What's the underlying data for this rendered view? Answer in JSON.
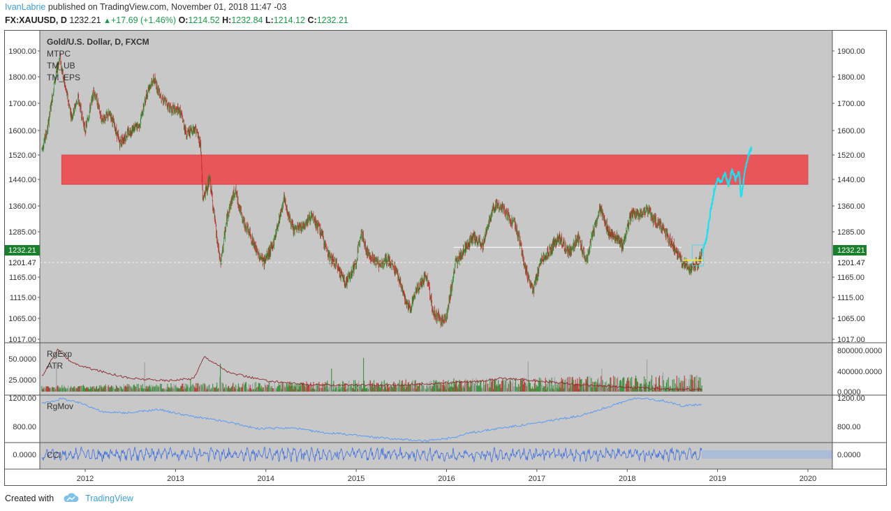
{
  "header": {
    "author": "IvanLabrie",
    "published_text": "published on TradingView.com, November 01, 2018 11:47 -03",
    "symbol": "FX:XAUUSD, D",
    "last": "1232.21",
    "change": "+17.69 (+1.46%)",
    "o_label": "O:",
    "o_value": "1214.52",
    "h_label": "H:",
    "h_value": "1232.84",
    "l_label": "L:",
    "l_value": "1214.12",
    "c_label": "C:",
    "c_value": "1232.21"
  },
  "legend": {
    "title": "Gold/U.S. Dollar, D, FXCM",
    "studies": [
      "MTPC",
      "TM_UB",
      "TM_EPS"
    ]
  },
  "price_badges": {
    "last": "1232.21",
    "ref": "1201.47"
  },
  "chart_data": {
    "type": "candlestick",
    "title": "Gold/U.S. Dollar, D, FXCM",
    "main_axis": {
      "ticks": [
        "1900.00",
        "1800.00",
        "1700.00",
        "1600.00",
        "1520.00",
        "1440.00",
        "1360.00",
        "1285.00",
        "1165.00",
        "1115.00",
        "1065.00",
        "1017.00"
      ],
      "ylim": [
        1017,
        1945
      ]
    },
    "x_axis": {
      "ticks": [
        "2012",
        "2013",
        "2014",
        "2015",
        "2016",
        "2017",
        "2018",
        "2019",
        "2020"
      ],
      "xlim": [
        2011.5,
        2020.3
      ]
    },
    "price_path": [
      [
        2011.52,
        1540
      ],
      [
        2011.58,
        1600
      ],
      [
        2011.66,
        1780
      ],
      [
        2011.72,
        1880
      ],
      [
        2011.76,
        1790
      ],
      [
        2011.85,
        1650
      ],
      [
        2011.92,
        1720
      ],
      [
        2012.0,
        1600
      ],
      [
        2012.1,
        1750
      ],
      [
        2012.18,
        1640
      ],
      [
        2012.28,
        1660
      ],
      [
        2012.38,
        1560
      ],
      [
        2012.5,
        1600
      ],
      [
        2012.6,
        1620
      ],
      [
        2012.7,
        1760
      ],
      [
        2012.76,
        1790
      ],
      [
        2012.85,
        1720
      ],
      [
        2012.95,
        1680
      ],
      [
        2013.05,
        1670
      ],
      [
        2013.12,
        1590
      ],
      [
        2013.22,
        1610
      ],
      [
        2013.28,
        1550
      ],
      [
        2013.3,
        1380
      ],
      [
        2013.38,
        1440
      ],
      [
        2013.46,
        1260
      ],
      [
        2013.5,
        1200
      ],
      [
        2013.58,
        1340
      ],
      [
        2013.66,
        1410
      ],
      [
        2013.74,
        1320
      ],
      [
        2013.82,
        1280
      ],
      [
        2013.9,
        1230
      ],
      [
        2013.98,
        1205
      ],
      [
        2014.08,
        1250
      ],
      [
        2014.2,
        1380
      ],
      [
        2014.3,
        1290
      ],
      [
        2014.4,
        1300
      ],
      [
        2014.5,
        1330
      ],
      [
        2014.6,
        1290
      ],
      [
        2014.7,
        1220
      ],
      [
        2014.8,
        1190
      ],
      [
        2014.88,
        1150
      ],
      [
        2015.0,
        1200
      ],
      [
        2015.05,
        1290
      ],
      [
        2015.12,
        1230
      ],
      [
        2015.25,
        1200
      ],
      [
        2015.35,
        1210
      ],
      [
        2015.45,
        1180
      ],
      [
        2015.55,
        1100
      ],
      [
        2015.6,
        1090
      ],
      [
        2015.68,
        1140
      ],
      [
        2015.78,
        1170
      ],
      [
        2015.85,
        1080
      ],
      [
        2015.95,
        1060
      ],
      [
        2016.0,
        1070
      ],
      [
        2016.1,
        1200
      ],
      [
        2016.2,
        1240
      ],
      [
        2016.3,
        1270
      ],
      [
        2016.4,
        1250
      ],
      [
        2016.5,
        1340
      ],
      [
        2016.55,
        1370
      ],
      [
        2016.65,
        1340
      ],
      [
        2016.75,
        1310
      ],
      [
        2016.8,
        1270
      ],
      [
        2016.88,
        1180
      ],
      [
        2016.96,
        1130
      ],
      [
        2017.05,
        1210
      ],
      [
        2017.15,
        1240
      ],
      [
        2017.25,
        1270
      ],
      [
        2017.35,
        1230
      ],
      [
        2017.45,
        1270
      ],
      [
        2017.55,
        1210
      ],
      [
        2017.62,
        1280
      ],
      [
        2017.7,
        1350
      ],
      [
        2017.8,
        1280
      ],
      [
        2017.88,
        1270
      ],
      [
        2017.95,
        1250
      ],
      [
        2018.05,
        1340
      ],
      [
        2018.12,
        1330
      ],
      [
        2018.22,
        1350
      ],
      [
        2018.3,
        1320
      ],
      [
        2018.38,
        1300
      ],
      [
        2018.45,
        1270
      ],
      [
        2018.55,
        1230
      ],
      [
        2018.62,
        1200
      ],
      [
        2018.7,
        1185
      ],
      [
        2018.78,
        1200
      ],
      [
        2018.83,
        1232
      ]
    ],
    "projection_path": [
      [
        2018.83,
        1232
      ],
      [
        2018.88,
        1270
      ],
      [
        2018.92,
        1340
      ],
      [
        2018.96,
        1400
      ],
      [
        2019.0,
        1440
      ],
      [
        2019.04,
        1430
      ],
      [
        2019.08,
        1460
      ],
      [
        2019.12,
        1420
      ],
      [
        2019.16,
        1470
      ],
      [
        2019.2,
        1440
      ],
      [
        2019.24,
        1470
      ],
      [
        2019.26,
        1380
      ],
      [
        2019.3,
        1460
      ],
      [
        2019.34,
        1520
      ],
      [
        2019.38,
        1540
      ]
    ],
    "resistance_zone": {
      "x": [
        2011.74,
        2020.0
      ],
      "y": [
        1425,
        1520
      ],
      "color": "#e8555a"
    },
    "reference_line": {
      "y": 1244,
      "x": [
        2016.08,
        2018.6
      ]
    },
    "series_colors": {
      "up": "#2e8b2e",
      "down": "#c0292a",
      "projection": "#1ee0f0",
      "background": "#c8c8c8"
    },
    "panes": [
      {
        "labels": [
          "RgExp",
          "ATR"
        ],
        "left_ticks": [
          "50.0000",
          "25.0000"
        ],
        "right_ticks": [
          "800000.0000",
          "400000.0000",
          "0.0000"
        ],
        "atr_path": [
          [
            2011.52,
            30
          ],
          [
            2011.7,
            55
          ],
          [
            2011.85,
            42
          ],
          [
            2012.1,
            36
          ],
          [
            2012.5,
            28
          ],
          [
            2012.9,
            26
          ],
          [
            2013.2,
            28
          ],
          [
            2013.32,
            48
          ],
          [
            2013.6,
            33
          ],
          [
            2014.0,
            26
          ],
          [
            2014.5,
            22
          ],
          [
            2015.0,
            22
          ],
          [
            2015.5,
            22
          ],
          [
            2016.0,
            24
          ],
          [
            2016.3,
            25
          ],
          [
            2016.6,
            28
          ],
          [
            2017.0,
            26
          ],
          [
            2017.5,
            22
          ],
          [
            2018.0,
            20
          ],
          [
            2018.5,
            18
          ],
          [
            2018.83,
            18
          ]
        ]
      },
      {
        "labels": [
          "RgMov"
        ],
        "left_ticks": [
          "1200.00",
          "800.00"
        ],
        "right_ticks": [
          "1200.00",
          "800.00"
        ],
        "path": [
          [
            2011.52,
            1120
          ],
          [
            2011.75,
            1190
          ],
          [
            2012.0,
            1110
          ],
          [
            2012.2,
            1000
          ],
          [
            2012.5,
            990
          ],
          [
            2012.8,
            1040
          ],
          [
            2013.2,
            940
          ],
          [
            2013.6,
            860
          ],
          [
            2013.9,
            770
          ],
          [
            2014.3,
            780
          ],
          [
            2014.6,
            720
          ],
          [
            2014.9,
            690
          ],
          [
            2015.2,
            650
          ],
          [
            2015.5,
            620
          ],
          [
            2015.8,
            600
          ],
          [
            2016.0,
            630
          ],
          [
            2016.3,
            720
          ],
          [
            2016.6,
            780
          ],
          [
            2016.9,
            830
          ],
          [
            2017.2,
            890
          ],
          [
            2017.5,
            960
          ],
          [
            2017.8,
            1080
          ],
          [
            2018.1,
            1200
          ],
          [
            2018.4,
            1160
          ],
          [
            2018.6,
            1090
          ],
          [
            2018.83,
            1110
          ]
        ]
      },
      {
        "labels": [
          "CCI"
        ],
        "left_ticks": [
          "0.0000"
        ],
        "right_ticks": [
          "0.0000"
        ]
      }
    ]
  },
  "footer": {
    "created_with": "Created with",
    "brand": "TradingView"
  }
}
